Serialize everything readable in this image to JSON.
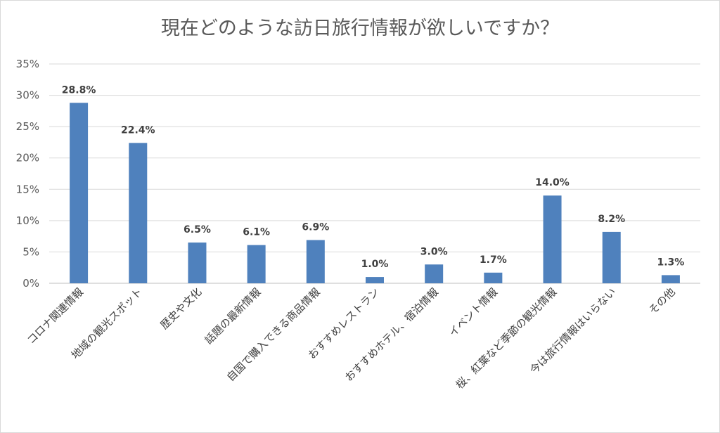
{
  "chart_data": {
    "type": "bar",
    "title": "現在どのような訪日旅行情報が欲しいですか？",
    "categories": [
      "コロナ関連情報",
      "地域の観光スポット",
      "歴史や文化",
      "話題の最新情報",
      "自国で購入できる商品情報",
      "おすすめレストラン",
      "おすすめホテル、宿泊情報",
      "イベント情報",
      "桜、紅葉など季節の観光情報",
      "今は旅行情報はいらない",
      "その他"
    ],
    "values": [
      28.8,
      22.4,
      6.5,
      6.1,
      6.9,
      1.0,
      3.0,
      1.7,
      14.0,
      8.2,
      1.3
    ],
    "data_labels": [
      "28.8%",
      "22.4%",
      "6.5%",
      "6.1%",
      "6.9%",
      "1.0%",
      "3.0%",
      "1.7%",
      "14.0%",
      "8.2%",
      "1.3%"
    ],
    "y_ticks": [
      "0%",
      "5%",
      "10%",
      "15%",
      "20%",
      "25%",
      "30%",
      "35%"
    ],
    "ylim": [
      0,
      35
    ],
    "xlabel": "",
    "ylabel": "",
    "grid": true,
    "bar_color": "#4f81bd"
  }
}
